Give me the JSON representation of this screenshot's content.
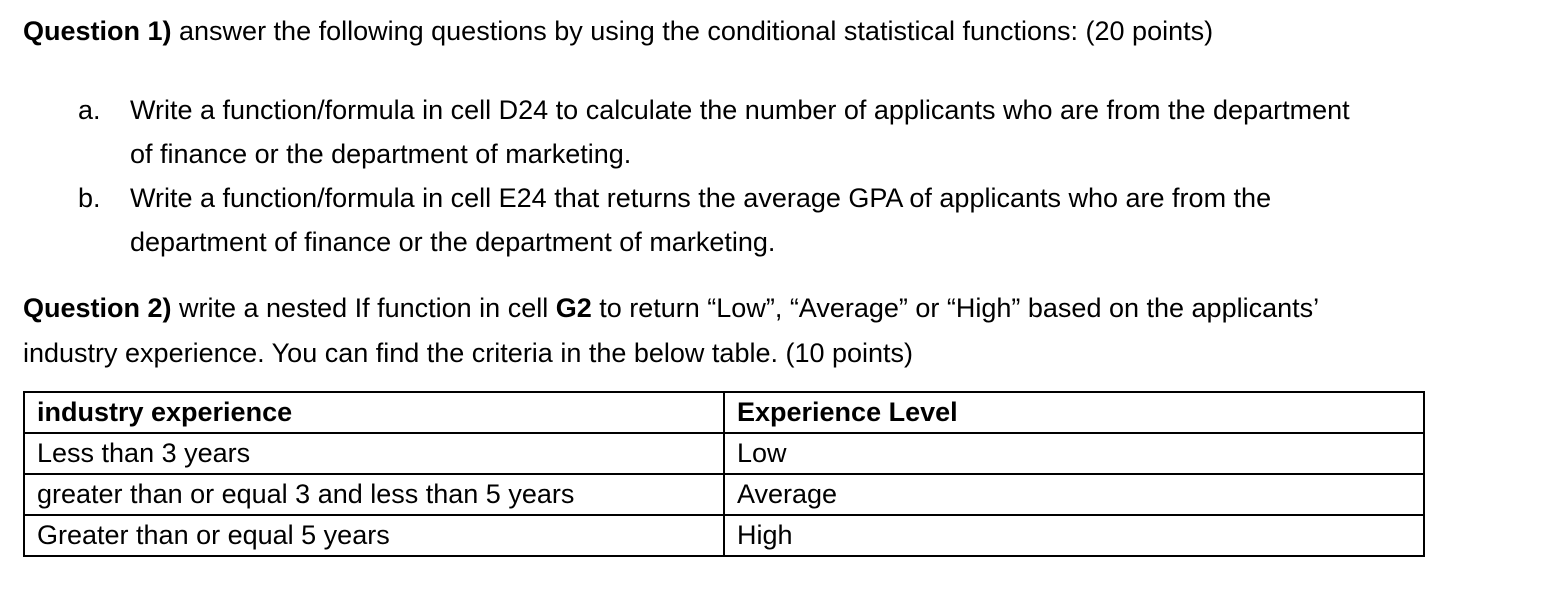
{
  "page": {
    "background": "#ffffff",
    "text_color": "#000000",
    "table_border_color": "#000000"
  },
  "question1": {
    "label": "Question 1)",
    "text": " answer the following questions by using the conditional statistical functions: (20 points)",
    "items": [
      {
        "marker": "a.",
        "text": "Write a function/formula in cell D24 to calculate the number of applicants who are from the department of finance or the department of marketing."
      },
      {
        "marker": "b.",
        "text": "Write a function/formula in cell E24 that returns the average GPA of applicants who are from the department of finance or the department of marketing."
      }
    ]
  },
  "question2": {
    "label": "Question 2)",
    "text_before_cell": " write a nested If function in cell ",
    "cell_ref": "G2",
    "text_after_cell": " to return “Low”, “Average” or “High” based on the applicants’ industry experience. You can find the criteria in the below table. (10 points)"
  },
  "criteria_table": {
    "headers": [
      "industry experience",
      "Experience Level"
    ],
    "rows": [
      [
        "Less than 3 years",
        "Low"
      ],
      [
        "greater than or equal 3 and less than 5 years",
        "Average"
      ],
      [
        "Greater than or equal 5 years",
        "High"
      ]
    ]
  }
}
